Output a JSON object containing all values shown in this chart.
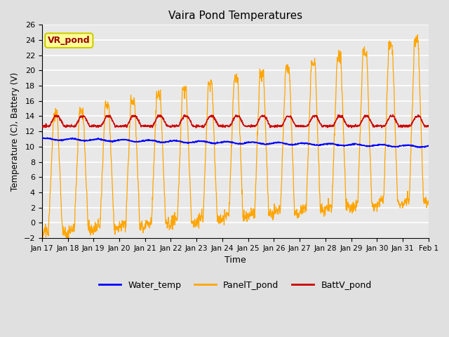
{
  "title": "Vaira Pond Temperatures",
  "xlabel": "Time",
  "ylabel": "Temperature (C), Battery (V)",
  "ylim": [
    -2,
    26
  ],
  "yticks": [
    -2,
    0,
    2,
    4,
    6,
    8,
    10,
    12,
    14,
    16,
    18,
    20,
    22,
    24,
    26
  ],
  "xtick_labels": [
    "Jan 17",
    "Jan 18",
    "Jan 19",
    "Jan 20",
    "Jan 21",
    "Jan 22",
    "Jan 23",
    "Jan 24",
    "Jan 25",
    "Jan 26",
    "Jan 27",
    "Jan 28",
    "Jan 29",
    "Jan 30",
    "Jan 31",
    "Feb 1"
  ],
  "xtick_positions": [
    0,
    1,
    2,
    3,
    4,
    5,
    6,
    7,
    8,
    9,
    10,
    11,
    12,
    13,
    14,
    15
  ],
  "water_temp_color": "#0000ff",
  "panel_temp_color": "#ffa500",
  "batt_color": "#cc0000",
  "annotation_text": "VR_pond",
  "annotation_color": "#990000",
  "annotation_bg": "#ffff99",
  "annotation_border": "#cccc00",
  "bg_color": "#e8e8e8",
  "grid_color": "#ffffff",
  "legend_labels": [
    "Water_temp",
    "PanelT_pond",
    "BattV_pond"
  ]
}
